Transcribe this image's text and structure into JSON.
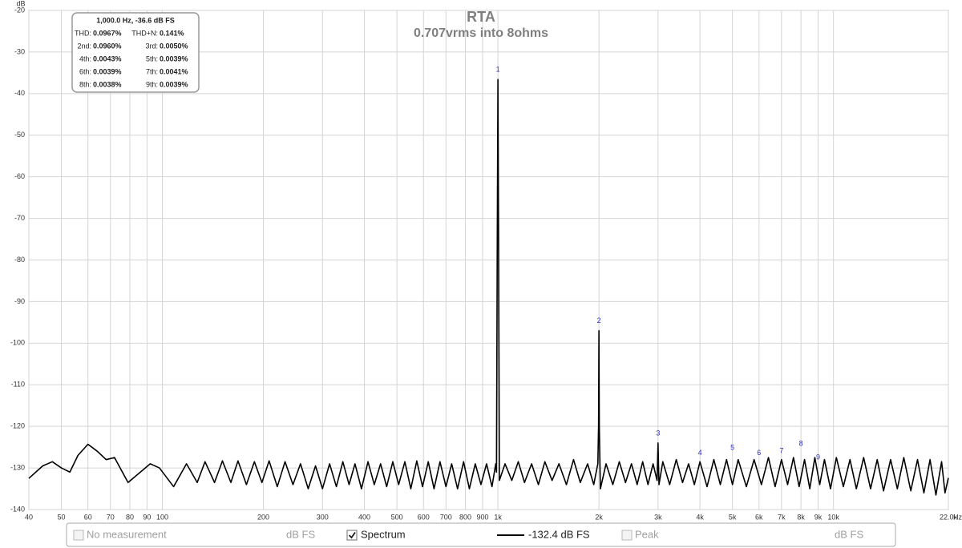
{
  "chart_data": {
    "type": "line",
    "title": "RTA",
    "subtitle": "0.707vrms into 8ohms",
    "x_label": "Hz",
    "y_label": "dB",
    "x_scale": "log",
    "grid": true,
    "xlim": [
      40,
      22000
    ],
    "ylim": [
      -140,
      -20
    ],
    "yticks": [
      -140,
      -130,
      -120,
      -110,
      -100,
      -90,
      -80,
      -70,
      -60,
      -50,
      -40,
      -30,
      -20
    ],
    "xticks": [
      40,
      50,
      60,
      70,
      80,
      90,
      100,
      200,
      300,
      400,
      500,
      600,
      700,
      800,
      900,
      {
        "value": 1000,
        "label": "1k"
      },
      {
        "value": 2000,
        "label": "2k"
      },
      {
        "value": 3000,
        "label": "3k"
      },
      {
        "value": 4000,
        "label": "4k"
      },
      {
        "value": 5000,
        "label": "5k"
      },
      {
        "value": 6000,
        "label": "6k"
      },
      {
        "value": 7000,
        "label": "7k"
      },
      {
        "value": 8000,
        "label": "8k"
      },
      {
        "value": 9000,
        "label": "9k"
      },
      {
        "value": 10000,
        "label": "10k"
      },
      {
        "value": 22000,
        "label": "22.0k"
      }
    ],
    "series": [
      {
        "name": "Spectrum",
        "color": "#000000",
        "checked": true,
        "readout": "-132.4 dB FS",
        "x": [
          40,
          44,
          47,
          50,
          53,
          56,
          60,
          64,
          68,
          72,
          79,
          86,
          92,
          98,
          108,
          118,
          127,
          134,
          143,
          151,
          160,
          168,
          178,
          188,
          198,
          208,
          220,
          232,
          245,
          258,
          272,
          286,
          300,
          315,
          330,
          345,
          360,
          375,
          392,
          410,
          428,
          447,
          466,
          486,
          506,
          528,
          550,
          573,
          596,
          620,
          645,
          672,
          700,
          728,
          758,
          790,
          822,
          856,
          890,
          925,
          960,
          985,
          990,
          995,
          1000,
          1005,
          1010,
          1050,
          1100,
          1150,
          1200,
          1260,
          1320,
          1380,
          1450,
          1520,
          1600,
          1680,
          1760,
          1850,
          1930,
          1985,
          1995,
          2000,
          2005,
          2020,
          2100,
          2200,
          2300,
          2400,
          2500,
          2600,
          2700,
          2800,
          2900,
          2980,
          3000,
          3020,
          3100,
          3250,
          3400,
          3550,
          3700,
          3850,
          4000,
          4200,
          4400,
          4600,
          4800,
          5000,
          5200,
          5500,
          5800,
          6100,
          6400,
          6700,
          7000,
          7300,
          7600,
          7900,
          8200,
          8500,
          8800,
          9100,
          9400,
          9800,
          10200,
          10700,
          11200,
          11700,
          12300,
          12900,
          13500,
          14100,
          14800,
          15500,
          16200,
          17000,
          17800,
          18600,
          19400,
          20200,
          21000,
          21500,
          22000
        ],
        "values": [
          -132.5,
          -129.5,
          -128.5,
          -130,
          -131,
          -127,
          -124.3,
          -126,
          -128,
          -127.5,
          -133.5,
          -131,
          -129,
          -130,
          -134.5,
          -129,
          -133.5,
          -128.5,
          -133.5,
          -128.3,
          -133.5,
          -128.3,
          -134,
          -128.5,
          -133.5,
          -128.3,
          -134.5,
          -128.5,
          -134,
          -129,
          -135,
          -129.5,
          -135,
          -129,
          -134.5,
          -128.5,
          -134,
          -129,
          -135,
          -128.5,
          -134,
          -129,
          -134.5,
          -128.5,
          -134,
          -128.5,
          -135,
          -128.3,
          -134.5,
          -128.5,
          -135,
          -128.5,
          -134.5,
          -129,
          -135,
          -128.5,
          -135,
          -129,
          -134,
          -129,
          -134.5,
          -129,
          -131,
          -80,
          -36.6,
          -80,
          -133,
          -129,
          -133,
          -128.5,
          -133.5,
          -129,
          -134,
          -128.5,
          -133,
          -129,
          -134,
          -128,
          -133.5,
          -129,
          -134,
          -129,
          -120,
          -97,
          -120,
          -135,
          -129,
          -134,
          -128.5,
          -133.5,
          -129,
          -134,
          -128.5,
          -134,
          -129,
          -133,
          -124,
          -134,
          -128.5,
          -134,
          -128,
          -133.5,
          -129,
          -134,
          -128.5,
          -134.5,
          -128,
          -134,
          -128,
          -134,
          -128,
          -134.5,
          -128,
          -134,
          -127.5,
          -134.5,
          -128,
          -134,
          -127.5,
          -134.5,
          -128,
          -135,
          -127.5,
          -134,
          -128,
          -135,
          -127.5,
          -134.5,
          -128,
          -135,
          -127.5,
          -135,
          -128,
          -135.5,
          -128,
          -135,
          -127.5,
          -135.5,
          -128,
          -136,
          -128,
          -136.5,
          -128.5,
          -136,
          -132.4
        ]
      }
    ],
    "harmonic_markers": {
      "labels": [
        "1",
        "2",
        "3",
        "4",
        "5",
        "6",
        "7",
        "8",
        "9"
      ],
      "x": [
        1000,
        2000,
        3000,
        4000,
        5000,
        6000,
        7000,
        8000,
        9000
      ],
      "y": [
        -36.6,
        -97,
        -124,
        -128.8,
        -127.5,
        -128.8,
        -128.3,
        -126.5,
        -129.8
      ]
    },
    "stats": {
      "header": "1,000.0 Hz, -36.6 dB FS",
      "rows": [
        [
          [
            "THD:",
            "0.0967%"
          ],
          [
            "THD+N:",
            "0.141%"
          ]
        ],
        [
          [
            "2nd:",
            "0.0960%"
          ],
          [
            "3rd:",
            "0.0050%"
          ]
        ],
        [
          [
            "4th:",
            "0.0043%"
          ],
          [
            "5th:",
            "0.0039%"
          ]
        ],
        [
          [
            "6th:",
            "0.0039%"
          ],
          [
            "7th:",
            "0.0041%"
          ]
        ],
        [
          [
            "8th:",
            "0.0038%"
          ],
          [
            "9th:",
            "0.0039%"
          ]
        ]
      ]
    },
    "controls": {
      "no_measurement": {
        "label": "No measurement",
        "unit": "dB FS",
        "checked": false
      },
      "peak": {
        "label": "Peak",
        "unit": "dB FS",
        "checked": false
      }
    }
  }
}
